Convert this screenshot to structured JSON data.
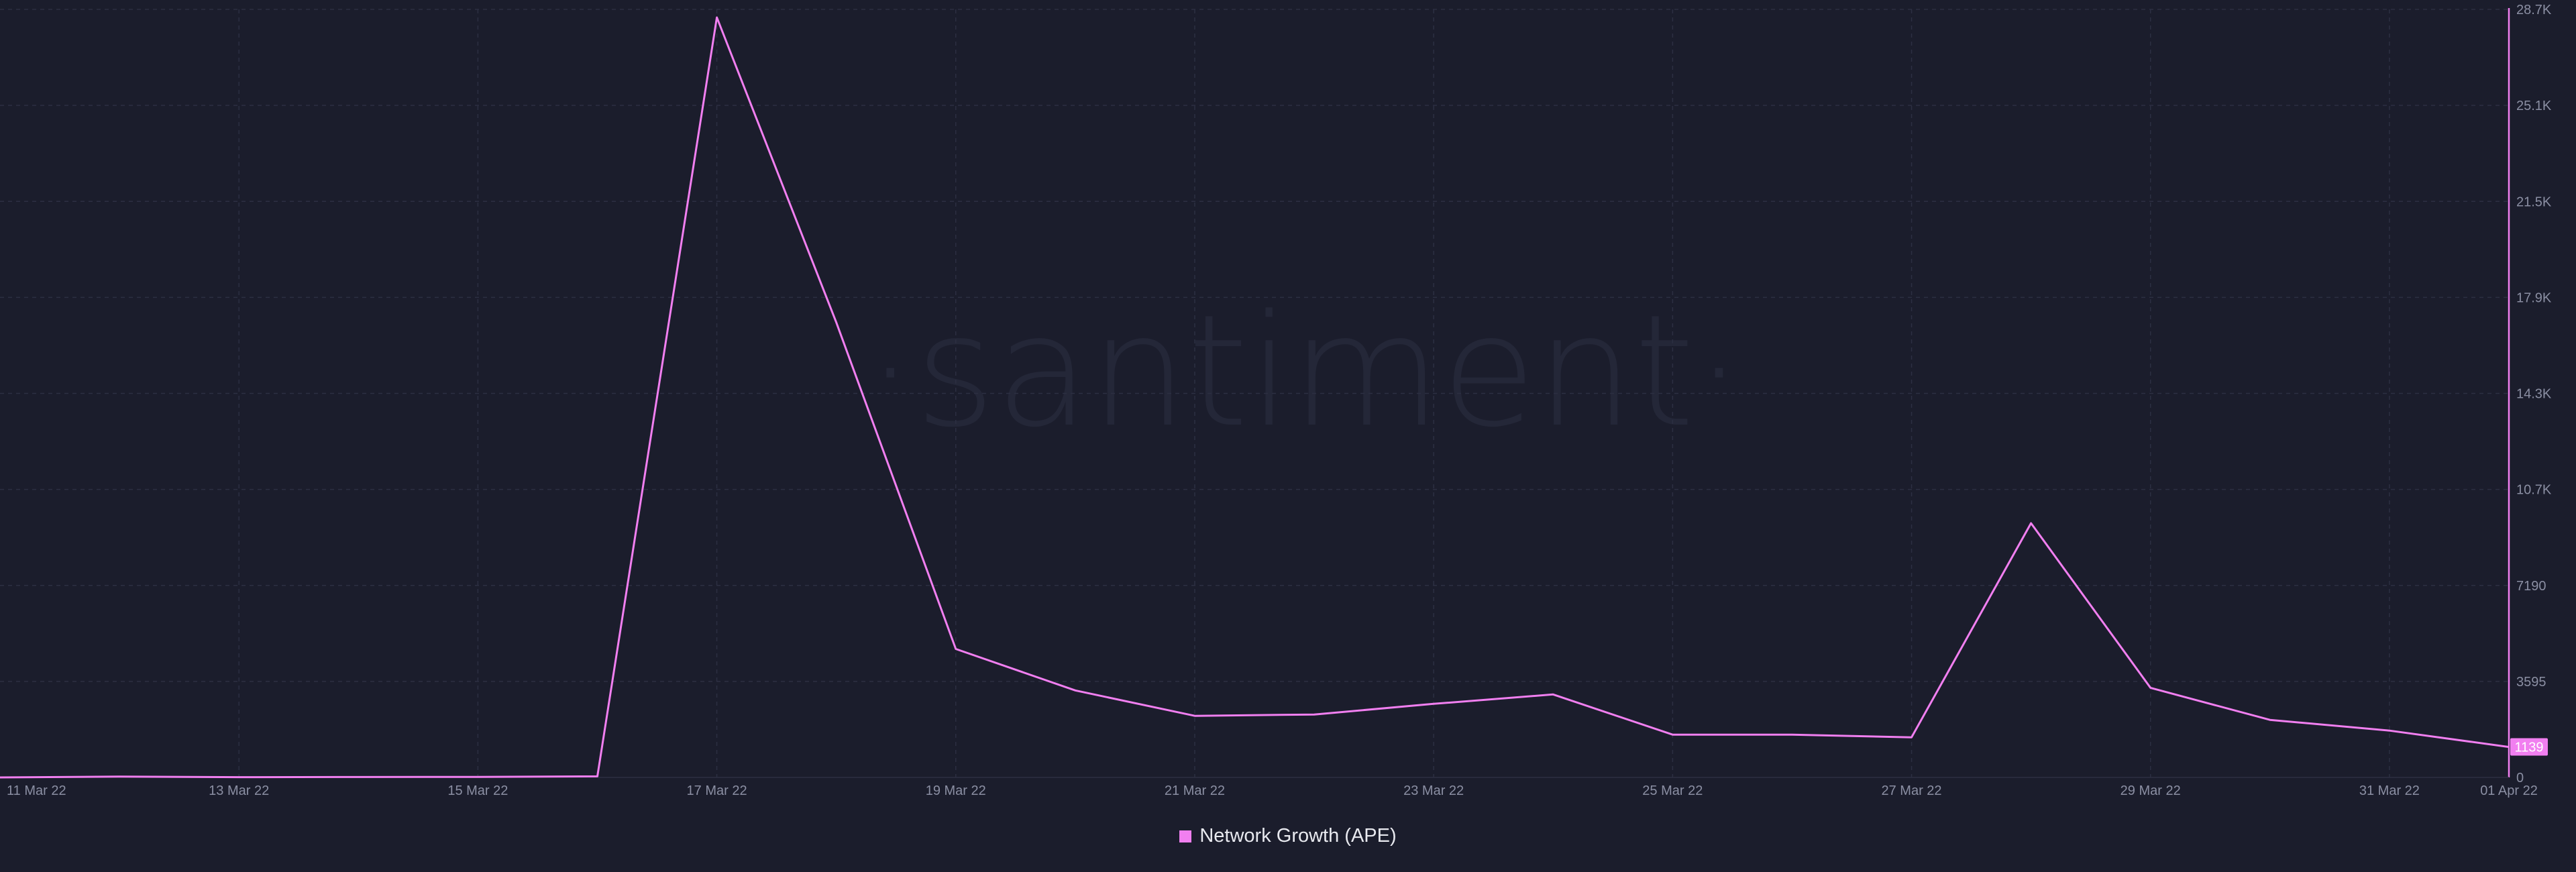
{
  "colors": {
    "background": "#1b1d2c",
    "grid": "#2c2f42",
    "series": "#f17ff0",
    "tick_text": "#8b8fa3",
    "watermark": "#242738"
  },
  "watermark": "·santiment·",
  "chart_data": {
    "type": "line",
    "x": [
      "2022-03-11",
      "2022-03-12",
      "2022-03-13",
      "2022-03-14",
      "2022-03-15",
      "2022-03-16",
      "2022-03-17",
      "2022-03-18",
      "2022-03-19",
      "2022-03-20",
      "2022-03-21",
      "2022-03-22",
      "2022-03-23",
      "2022-03-24",
      "2022-03-25",
      "2022-03-26",
      "2022-03-27",
      "2022-03-28",
      "2022-03-29",
      "2022-03-30",
      "2022-03-31",
      "2022-04-01"
    ],
    "x_ticks": [
      "11 Mar 22",
      "13 Mar 22",
      "15 Mar 22",
      "17 Mar 22",
      "19 Mar 22",
      "21 Mar 22",
      "23 Mar 22",
      "25 Mar 22",
      "27 Mar 22",
      "29 Mar 22",
      "31 Mar 22",
      "01 Apr 22"
    ],
    "series": [
      {
        "name": "Network Growth (APE)",
        "color": "#f17ff0",
        "values": [
          0,
          30,
          10,
          15,
          20,
          40,
          28400,
          17000,
          4800,
          3250,
          2300,
          2350,
          2750,
          3100,
          1600,
          1600,
          1500,
          9500,
          3350,
          2150,
          1750,
          1139
        ]
      }
    ],
    "y_ticks": [
      "0",
      "3595",
      "7190",
      "10.7K",
      "14.3K",
      "17.9K",
      "21.5K",
      "25.1K",
      "28.7K"
    ],
    "ylim": [
      0,
      28700
    ],
    "last_value_label": "1139",
    "grid": true,
    "legend_position": "bottom-center",
    "y_axis_position": "right"
  }
}
